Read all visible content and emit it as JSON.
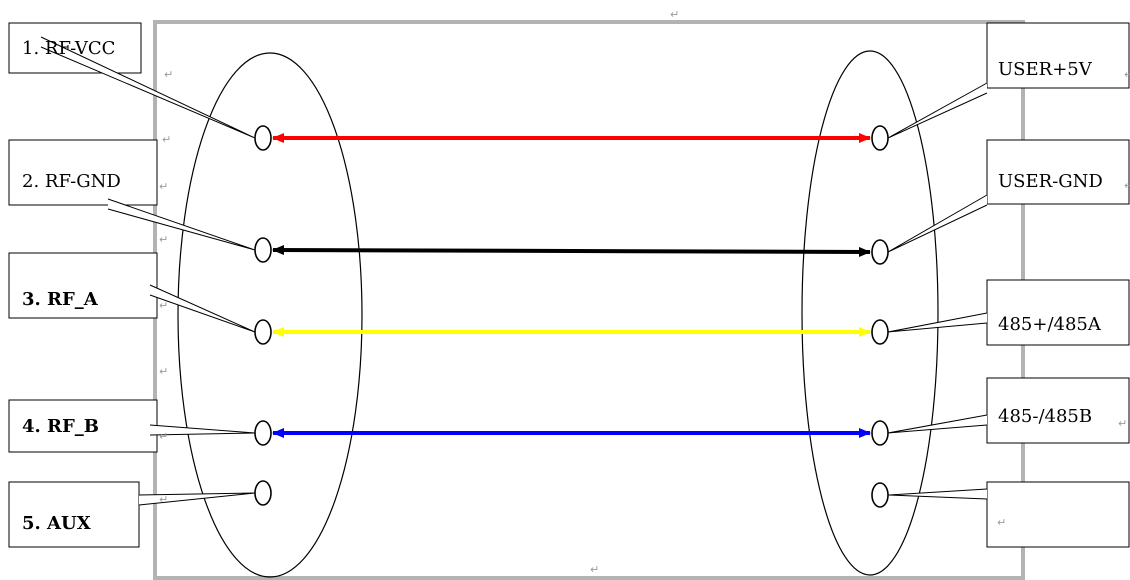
{
  "left_labels": [
    {
      "id": "1",
      "text": "1. RF-VCC",
      "bold": false
    },
    {
      "id": "2",
      "text": "2. RF-GND",
      "bold": false
    },
    {
      "id": "3",
      "text": "3. RF_A",
      "bold": true
    },
    {
      "id": "4",
      "text": "4. RF_B",
      "bold": true
    },
    {
      "id": "5",
      "text": "5. AUX",
      "bold": true
    }
  ],
  "right_labels": [
    {
      "id": "1",
      "text": "USER+5V"
    },
    {
      "id": "2",
      "text": "USER-GND"
    },
    {
      "id": "3",
      "text": "485+/485A"
    },
    {
      "id": "4",
      "text": "485-/485B"
    },
    {
      "id": "5",
      "text": ""
    }
  ],
  "connections": [
    {
      "from": "1",
      "to": "1",
      "color": "#ff0000"
    },
    {
      "from": "2",
      "to": "2",
      "color": "#000000"
    },
    {
      "from": "3",
      "to": "3",
      "color": "#ffff00"
    },
    {
      "from": "4",
      "to": "4",
      "color": "#0000ff"
    }
  ],
  "paragraph_mark": "↵"
}
